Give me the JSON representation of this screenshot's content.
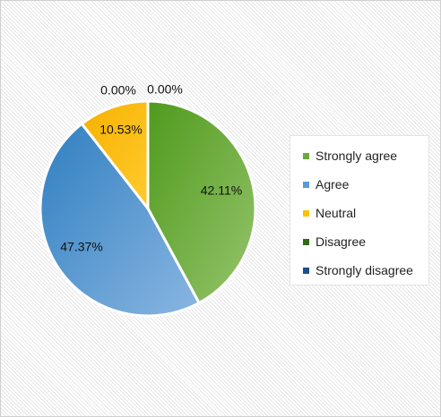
{
  "chart_data": {
    "type": "pie",
    "categories": [
      "Strongly agree",
      "Agree",
      "Neutral",
      "Disagree",
      "Strongly disagree"
    ],
    "values": [
      42.11,
      47.37,
      10.53,
      0.0,
      0.0
    ],
    "labels": [
      "42.11%",
      "47.37%",
      "10.53%",
      "0.00%",
      "0.00%"
    ],
    "colors": [
      "#6aaa3c",
      "#5b9bd5",
      "#ffc000",
      "#2e6b12",
      "#1f4e8c"
    ],
    "title": "",
    "legend": "right",
    "start_angle": "top, clockwise"
  }
}
